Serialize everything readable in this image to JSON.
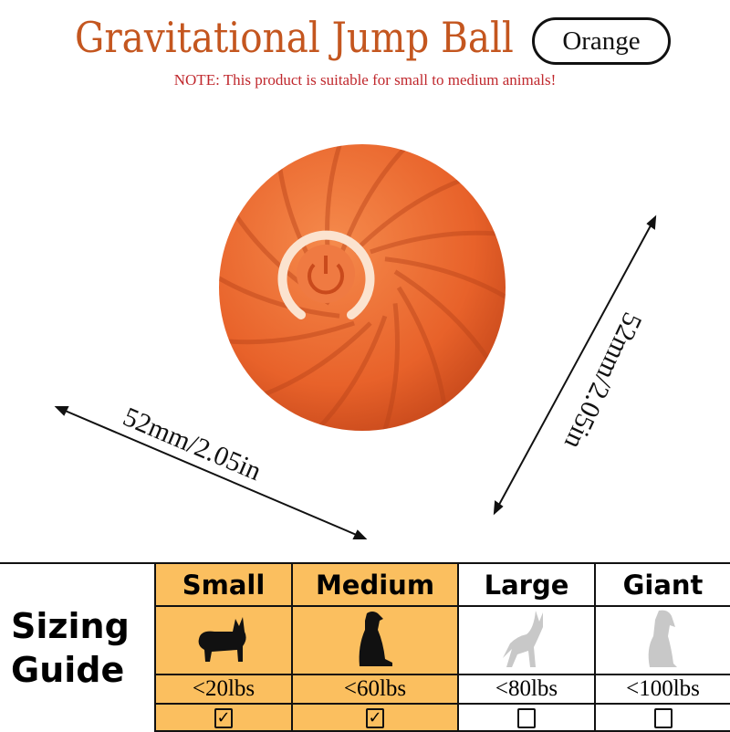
{
  "title": "Gravitational Jump Ball",
  "color_badge": "Orange",
  "note": "NOTE: This product is suitable for small to medium animals!",
  "dimensions": {
    "width": "52mm/2.05in",
    "height": "52mm/2.05in"
  },
  "colors": {
    "title": "#c4561f",
    "note": "#c0282d",
    "ball": "#e8622a",
    "highlight": "#fbbf5f"
  },
  "sizing": {
    "label_line1": "Sizing",
    "label_line2": "Guide",
    "columns": [
      {
        "name": "Small",
        "weight": "<20lbs",
        "checked": true,
        "check": "✓",
        "icon": "corgi-icon"
      },
      {
        "name": "Medium",
        "weight": "<60lbs",
        "checked": true,
        "check": "✓",
        "icon": "sitting-dog-icon"
      },
      {
        "name": "Large",
        "weight": "<80lbs",
        "checked": false,
        "check": "",
        "icon": "shepherd-dog-icon"
      },
      {
        "name": "Giant",
        "weight": "<100lbs",
        "checked": false,
        "check": "",
        "icon": "large-dog-icon"
      }
    ]
  }
}
